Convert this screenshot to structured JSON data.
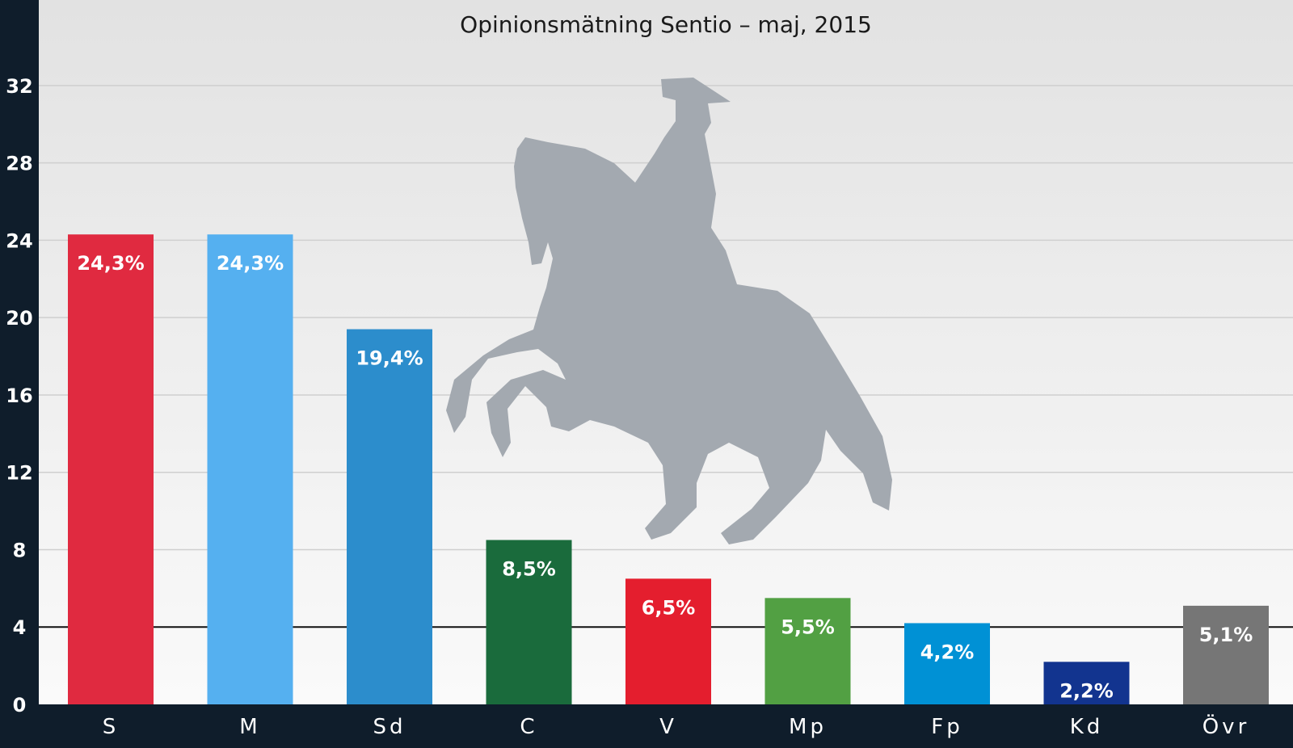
{
  "chart_data": {
    "type": "bar",
    "title": "Opinionsmätning Sentio – maj, 2015",
    "categories": [
      "S",
      "M",
      "Sd",
      "C",
      "V",
      "Mp",
      "Fp",
      "Kd",
      "Övr"
    ],
    "values": [
      24.3,
      24.3,
      19.4,
      8.5,
      6.5,
      5.5,
      4.2,
      2.2,
      5.1
    ],
    "value_labels": [
      "24,3%",
      "24,3%",
      "19,4%",
      "8,5%",
      "6,5%",
      "5,5%",
      "4,2%",
      "2,2%",
      "5,1%"
    ],
    "colors": [
      "#e02a40",
      "#55b0f0",
      "#2c8dcc",
      "#1a6b3c",
      "#e41e2e",
      "#52a043",
      "#0091d5",
      "#12348f",
      "#767676"
    ],
    "yticks": [
      0,
      4,
      8,
      12,
      16,
      20,
      24,
      28,
      32
    ],
    "ylim": [
      0,
      34
    ],
    "threshold": 4,
    "grid": true,
    "xlabel": "",
    "ylabel": ""
  }
}
